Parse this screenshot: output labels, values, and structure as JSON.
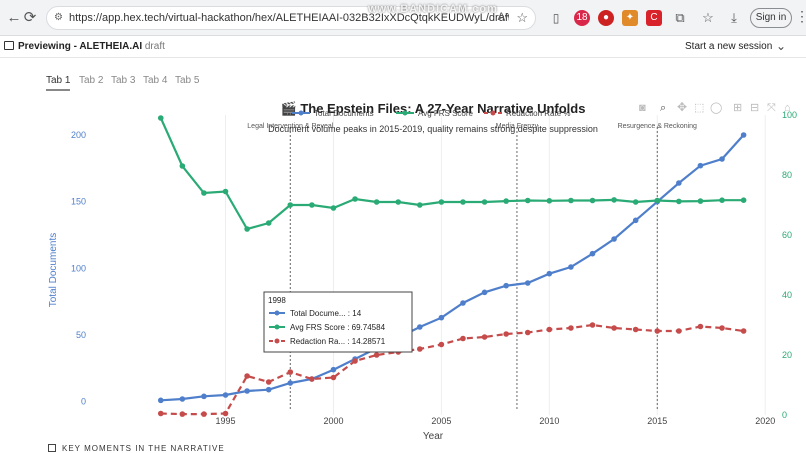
{
  "browser": {
    "url": "https://app.hex.tech/virtual-hackathon/hex/ALETHEIAAI-032B32IxXDcQtqkKEUDWyL/draft/logic...",
    "signin_label": "Sign in",
    "ext_badge": "18"
  },
  "watermark": "www.BANDICAM.com",
  "app": {
    "preview_label": "Previewing - ALETHEIA.AI",
    "draft_label": "draft",
    "new_session_label": "Start a new session"
  },
  "tabs": [
    "Tab 1",
    "Tab 2",
    "Tab 3",
    "Tab 4",
    "Tab 5"
  ],
  "footer": {
    "key_moments_label": "KEY MOMENTS IN THE NARRATIVE"
  },
  "colors": {
    "blue": "#4f7fcb",
    "green": "#2aaa74",
    "red": "#c64b4b"
  },
  "chart_data": {
    "type": "line",
    "title": "🎬 The Epstein Files: A 27-Year Narrative Unfolds",
    "subtitle": "Document volume peaks in 2015-2019, quality remains strong despite suppression",
    "xlabel": "Year",
    "ylabel": "Total Documents",
    "xlim": [
      1989,
      2020.5
    ],
    "ylim": [
      -10,
      215
    ],
    "y2lim": [
      0,
      100
    ],
    "x_ticks": [
      1995,
      2000,
      2005,
      2010,
      2015,
      2020
    ],
    "y_ticks": [
      0,
      50,
      100,
      150,
      200
    ],
    "y2_ticks": [
      0,
      20,
      40,
      60,
      80,
      100
    ],
    "x": [
      1992,
      1993,
      1994,
      1995,
      1996,
      1997,
      1998,
      1999,
      2000,
      2001,
      2002,
      2003,
      2004,
      2005,
      2006,
      2007,
      2008,
      2009,
      2010,
      2011,
      2012,
      2013,
      2014,
      2015,
      2016,
      2017,
      2018,
      2019
    ],
    "series": [
      {
        "name": "Total Documents",
        "axis": "y",
        "dash": false,
        "values": [
          1,
          2,
          4,
          5,
          8,
          9,
          14,
          17,
          24,
          32,
          40,
          48,
          56,
          63,
          74,
          82,
          87,
          89,
          96,
          101,
          111,
          122,
          136,
          150,
          164,
          177,
          182,
          200
        ]
      },
      {
        "name": "Avg FRS Score",
        "axis": "y2",
        "dash": false,
        "values": [
          99,
          83,
          74,
          74.5,
          62,
          64,
          70,
          70,
          69,
          72,
          71,
          71,
          70,
          71,
          71,
          71,
          71.3,
          71.5,
          71.4,
          71.5,
          71.5,
          71.7,
          71,
          71.5,
          71.2,
          71.3,
          71.6,
          71.6
        ]
      },
      {
        "name": "Redaction Rate %",
        "axis": "y2",
        "dash": true,
        "values": [
          0.5,
          0.3,
          0.3,
          0.5,
          13,
          11,
          14.3,
          12,
          12.5,
          18,
          20,
          21,
          22,
          23.5,
          25.5,
          26,
          27,
          27.5,
          28.5,
          29,
          30,
          29,
          28.5,
          28,
          28,
          29.5,
          29,
          28
        ]
      }
    ],
    "epochs": [
      {
        "x": 1998,
        "label": "Legal Intervention & Reveal"
      },
      {
        "x": 2008.5,
        "label": "Media Frenzy"
      },
      {
        "x": 2015,
        "label": "Resurgence & Reckoning"
      }
    ],
    "hover": {
      "header": "1998",
      "rows": [
        {
          "label": "Total Docume... : 14"
        },
        {
          "label": "Avg FRS Score : 69.74584"
        },
        {
          "label": "Redaction Ra... : 14.28571"
        }
      ]
    }
  }
}
